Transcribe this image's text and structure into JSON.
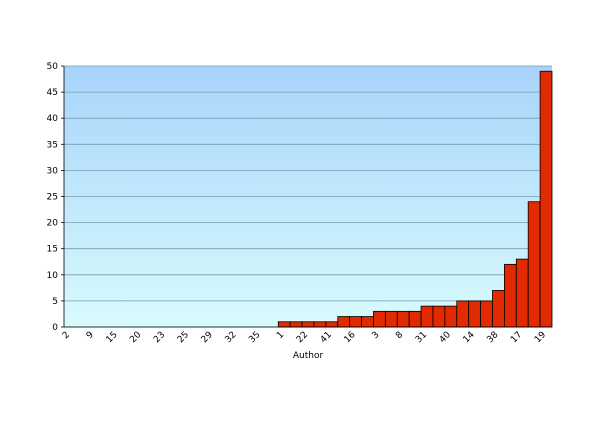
{
  "chart_data": {
    "type": "bar",
    "x_label": "Author",
    "categories": [
      "2",
      null,
      "9",
      null,
      "15",
      null,
      "20",
      null,
      "23",
      null,
      "25",
      null,
      "29",
      null,
      "32",
      null,
      "35",
      null,
      "1",
      null,
      "22",
      null,
      "41",
      null,
      "16",
      null,
      "3",
      null,
      "8",
      null,
      "31",
      null,
      "40",
      null,
      "14",
      null,
      "38",
      null,
      "17",
      null,
      "19"
    ],
    "values": [
      0,
      0,
      0,
      0,
      0,
      0,
      0,
      0,
      0,
      0,
      0,
      0,
      0,
      0,
      0,
      0,
      0,
      0,
      1,
      1,
      1,
      1,
      1,
      2,
      2,
      2,
      3,
      3,
      3,
      3,
      4,
      4,
      4,
      5,
      5,
      5,
      7,
      12,
      13,
      24,
      49
    ],
    "color": "#e22a00",
    "ylim": [
      0,
      50
    ],
    "yticks": [
      0,
      5,
      10,
      15,
      20,
      25,
      30,
      35,
      40,
      45,
      50
    ],
    "grid": true
  }
}
